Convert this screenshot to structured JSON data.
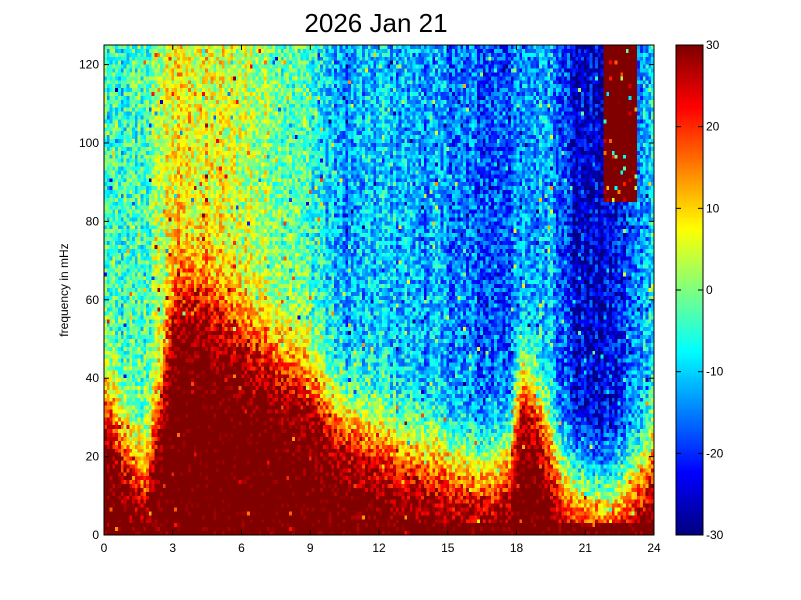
{
  "figure": {
    "background": "#ffffff"
  },
  "chart_data": {
    "type": "heatmap",
    "title": "2026 Jan 21",
    "xlabel": "",
    "ylabel": "frequency in mHz",
    "xlim": [
      0,
      24
    ],
    "ylim": [
      0,
      125
    ],
    "xticks": [
      0,
      3,
      6,
      9,
      12,
      15,
      18,
      21,
      24
    ],
    "yticks": [
      0,
      20,
      40,
      60,
      80,
      100,
      120
    ],
    "colorbar": {
      "colormap": "jet",
      "clim": [
        -30,
        30
      ],
      "ticks": [
        -30,
        -20,
        -10,
        0,
        10,
        20,
        30
      ]
    },
    "grid": {
      "time_bins": 196,
      "freq_bins": 125
    },
    "time_profile": [
      {
        "t": 0.0,
        "f": 36
      },
      {
        "t": 0.6,
        "f": 28
      },
      {
        "t": 1.2,
        "f": 18
      },
      {
        "t": 1.8,
        "f": 14
      },
      {
        "t": 2.4,
        "f": 32
      },
      {
        "t": 3.0,
        "f": 58
      },
      {
        "t": 4.0,
        "f": 62
      },
      {
        "t": 5.0,
        "f": 56
      },
      {
        "t": 6.0,
        "f": 52
      },
      {
        "t": 7.0,
        "f": 48
      },
      {
        "t": 8.0,
        "f": 44
      },
      {
        "t": 9.0,
        "f": 40
      },
      {
        "t": 10.0,
        "f": 32
      },
      {
        "t": 11.0,
        "f": 28
      },
      {
        "t": 12.0,
        "f": 24
      },
      {
        "t": 13.0,
        "f": 22
      },
      {
        "t": 14.0,
        "f": 20
      },
      {
        "t": 15.0,
        "f": 18
      },
      {
        "t": 16.0,
        "f": 16
      },
      {
        "t": 17.0,
        "f": 16
      },
      {
        "t": 17.7,
        "f": 20
      },
      {
        "t": 18.2,
        "f": 40
      },
      {
        "t": 18.8,
        "f": 36
      },
      {
        "t": 19.5,
        "f": 22
      },
      {
        "t": 20.0,
        "f": 14
      },
      {
        "t": 21.0,
        "f": 10
      },
      {
        "t": 22.0,
        "f": 8
      },
      {
        "t": 23.0,
        "f": 12
      },
      {
        "t": 23.6,
        "f": 16
      },
      {
        "t": 24.0,
        "f": 20
      }
    ],
    "high_freq_level": [
      {
        "t": 0.0,
        "v": -4
      },
      {
        "t": 1.0,
        "v": -6
      },
      {
        "t": 2.0,
        "v": -2
      },
      {
        "t": 3.0,
        "v": 8
      },
      {
        "t": 5.0,
        "v": 6
      },
      {
        "t": 7.0,
        "v": 2
      },
      {
        "t": 9.0,
        "v": -4
      },
      {
        "t": 10.5,
        "v": -14
      },
      {
        "t": 12.0,
        "v": -10
      },
      {
        "t": 13.5,
        "v": -12
      },
      {
        "t": 15.0,
        "v": -14
      },
      {
        "t": 16.5,
        "v": -18
      },
      {
        "t": 18.0,
        "v": -16
      },
      {
        "t": 19.5,
        "v": -10
      },
      {
        "t": 20.5,
        "v": -24
      },
      {
        "t": 21.5,
        "v": -26
      },
      {
        "t": 22.5,
        "v": -22
      },
      {
        "t": 23.5,
        "v": -12
      },
      {
        "t": 24.0,
        "v": -6
      }
    ],
    "low_freq_floor": 30,
    "saturated_patch": {
      "t_start": 21.8,
      "t_end": 23.3,
      "f_start": 85,
      "f_end": 125,
      "value": 30
    }
  }
}
